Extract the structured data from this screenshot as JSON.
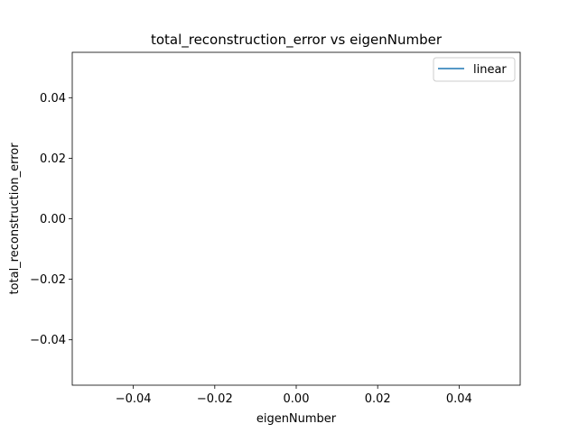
{
  "chart_data": {
    "type": "line",
    "title": "total_reconstruction_error vs eigenNumber",
    "xlabel": "eigenNumber",
    "ylabel": "total_reconstruction_error",
    "xlim": [
      -0.055,
      0.055
    ],
    "ylim": [
      -0.055,
      0.055
    ],
    "x_ticks": [
      -0.04,
      -0.02,
      0.0,
      0.02,
      0.04
    ],
    "x_tick_labels": [
      "−0.04",
      "−0.02",
      "0.00",
      "0.02",
      "0.04"
    ],
    "y_ticks": [
      -0.04,
      -0.02,
      0.0,
      0.02,
      0.04
    ],
    "y_tick_labels": [
      "−0.04",
      "−0.02",
      "0.00",
      "0.02",
      "0.04"
    ],
    "grid": false,
    "legend_position": "upper-right",
    "series": [
      {
        "name": "linear",
        "color": "#1f77b4",
        "x": [],
        "y": []
      }
    ]
  }
}
